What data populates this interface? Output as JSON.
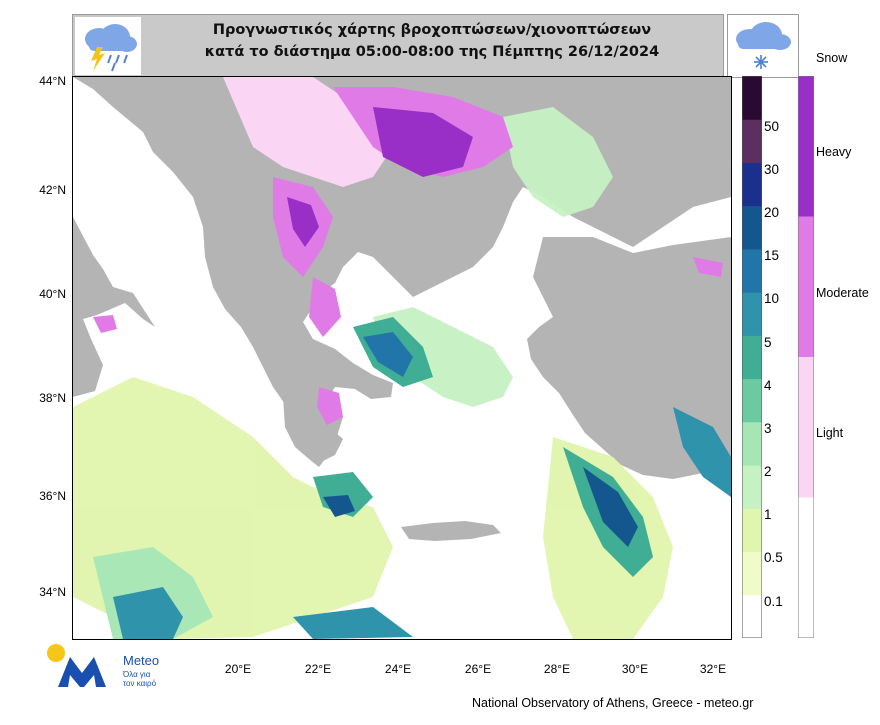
{
  "header": {
    "title_line1": "Προγνωστικός χάρτης βροχοπτώσεων/χιονοπτώσεων",
    "title_line2": "κατά το διάστημα 05:00-08:00 της Πέμπτης 26/12/2024",
    "rain_icon": "rain-cloud-lightning-icon",
    "snow_icon": "snow-cloud-icon"
  },
  "map": {
    "lat_labels": [
      "44°N",
      "42°N",
      "40°N",
      "38°N",
      "36°N",
      "34°N"
    ],
    "lon_labels": [
      "20°E",
      "22°E",
      "24°E",
      "26°E",
      "28°E",
      "30°E",
      "32°E"
    ],
    "colors": {
      "land": "#b4b4b4",
      "sea": "#ffffff"
    }
  },
  "rain_colorbar": {
    "levels": [
      "0.1",
      "0.5",
      "1",
      "2",
      "3",
      "4",
      "5",
      "10",
      "15",
      "20",
      "30",
      "50"
    ],
    "colors": [
      "#ffffff",
      "#f1fbc8",
      "#e0f5ad",
      "#c6f1c3",
      "#a6e6b4",
      "#6ccaa3",
      "#3fae94",
      "#2f93ac",
      "#2275a8",
      "#14578e",
      "#1b2f8f",
      "#5b3060",
      "#2a0a30"
    ]
  },
  "snow_colorbar": {
    "title": "Snow",
    "levels": [
      "Heavy",
      "Moderate",
      "Light"
    ],
    "colors": [
      "#9a2fc8",
      "#e07ae6",
      "#fbd5f4",
      "#ffffff"
    ]
  },
  "logo": {
    "name": "Meteo",
    "tagline_line1": "Όλα για",
    "tagline_line2": "τον καιρό"
  },
  "footer": {
    "credit": "National Observatory of Athens, Greece - meteo.gr"
  }
}
